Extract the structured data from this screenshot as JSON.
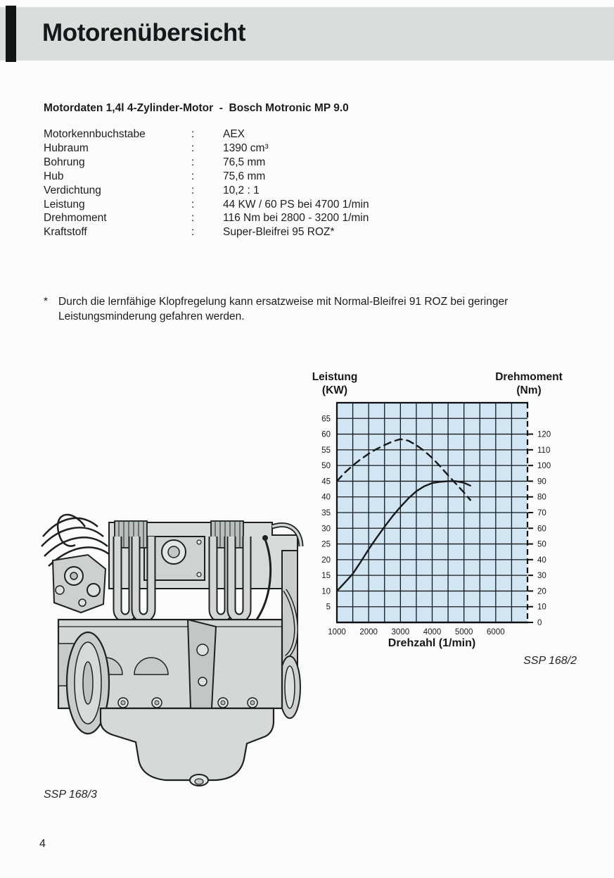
{
  "header": {
    "title": "Motorenübersicht"
  },
  "specs": {
    "title": "Motordaten 1,4l 4-Zylinder-Motor  -  Bosch Motronic MP 9.0",
    "colon": ":",
    "rows": [
      {
        "label": "Motorkennbuchstabe",
        "value": "AEX"
      },
      {
        "label": "Hubraum",
        "value": "1390 cm³"
      },
      {
        "label": "Bohrung",
        "value": "76,5 mm"
      },
      {
        "label": "Hub",
        "value": "75,6 mm"
      },
      {
        "label": "Verdichtung",
        "value": "10,2 : 1"
      },
      {
        "label": "Leistung",
        "value": "44 KW / 60 PS bei 4700 1/min"
      },
      {
        "label": "Drehmoment",
        "value": "116 Nm bei 2800 - 3200 1/min"
      },
      {
        "label": "Kraftstoff",
        "value": "Super-Bleifrei 95 ROZ*"
      }
    ]
  },
  "footnote": {
    "marker": "*",
    "line1": "Durch die lernfähige Klopfregelung kann ersatzweise mit Normal-Bleifrei 91 ROZ bei geringer",
    "line2": "Leistungsminderung gefahren werden."
  },
  "chart_data": {
    "type": "line",
    "plot_bg": "#d2e5f2",
    "grid": true,
    "left_axis": {
      "label": "Leistung",
      "unit": "(KW)",
      "min": 0,
      "max": 70,
      "tick_step": 5,
      "tick_labels": [
        65,
        60,
        55,
        50,
        45,
        40,
        35,
        30,
        25,
        20,
        15,
        10,
        5
      ]
    },
    "right_axis": {
      "label": "Drehmoment",
      "unit": "(Nm)",
      "min": 0,
      "max": 140,
      "tick_step": 10,
      "tick_labels": [
        120,
        110,
        100,
        90,
        80,
        70,
        60,
        50,
        40,
        30,
        20,
        10,
        0
      ]
    },
    "x_axis": {
      "label": "Drehzahl (1/min)",
      "min": 1000,
      "max": 7000,
      "grid_step": 500,
      "tick_labels": [
        1000,
        2000,
        3000,
        4000,
        5000,
        6000
      ]
    },
    "series": [
      {
        "name": "Leistung (KW)",
        "axis": "left",
        "style": "solid",
        "points": [
          [
            1000,
            10
          ],
          [
            1250,
            12.7
          ],
          [
            1500,
            15.5
          ],
          [
            1750,
            19.3
          ],
          [
            2000,
            23.3
          ],
          [
            2250,
            27
          ],
          [
            2500,
            30.5
          ],
          [
            2750,
            33.8
          ],
          [
            3000,
            36.8
          ],
          [
            3250,
            39.5
          ],
          [
            3500,
            41.8
          ],
          [
            3750,
            43.4
          ],
          [
            4000,
            44.4
          ],
          [
            4250,
            44.8
          ],
          [
            4500,
            45
          ],
          [
            4750,
            45
          ],
          [
            5000,
            44.5
          ],
          [
            5200,
            43.6
          ]
        ]
      },
      {
        "name": "Drehmoment (Nm)",
        "axis": "right",
        "style": "dashed",
        "points": [
          [
            1000,
            90
          ],
          [
            1250,
            95.5
          ],
          [
            1500,
            100
          ],
          [
            1750,
            104
          ],
          [
            2000,
            107.5
          ],
          [
            2250,
            110.5
          ],
          [
            2500,
            113
          ],
          [
            2750,
            115.3
          ],
          [
            3000,
            116.8
          ],
          [
            3250,
            115.8
          ],
          [
            3500,
            113
          ],
          [
            3750,
            109.3
          ],
          [
            4000,
            104.8
          ],
          [
            4250,
            99.5
          ],
          [
            4500,
            93.8
          ],
          [
            4750,
            88.3
          ],
          [
            5000,
            82.8
          ],
          [
            5200,
            78
          ]
        ]
      }
    ]
  },
  "captions": {
    "chart": "SSP 168/2",
    "engine": "SSP 168/3"
  },
  "page_number": "4"
}
